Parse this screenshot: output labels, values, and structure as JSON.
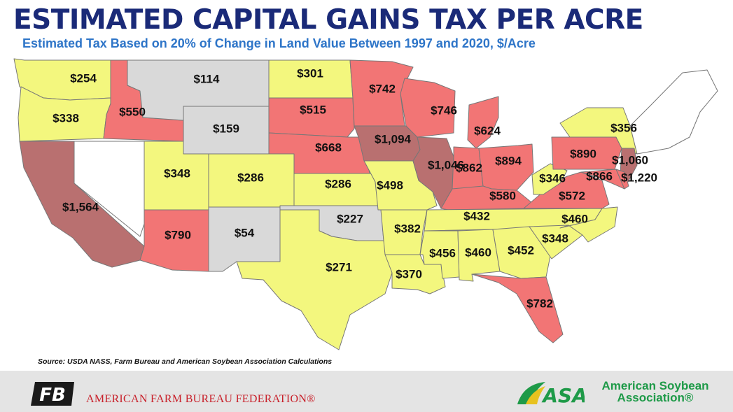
{
  "title": "ESTIMATED CAPITAL GAINS TAX PER ACRE",
  "subtitle": "Estimated Tax Based on 20% of Change in Land Value Between 1997 and 2020, $/Acre",
  "source": "Source: USDA NASS, Farm Bureau and American Soybean Association Calculations",
  "colors": {
    "title": "#1a2a78",
    "subtitle": "#2e75c8",
    "low": "#f3f77e",
    "medium": "#f27575",
    "high": "#b97070",
    "no_data": "#d9d9d9",
    "none": "#ffffff",
    "afbf_red": "#c8202a",
    "asa_green": "#1e9a48"
  },
  "states": [
    {
      "state": "WA",
      "value": "$254",
      "level": "low"
    },
    {
      "state": "OR",
      "value": "$338",
      "level": "low"
    },
    {
      "state": "CA",
      "value": "$1,564",
      "level": "high"
    },
    {
      "state": "ID",
      "value": "$550",
      "level": "medium"
    },
    {
      "state": "MT",
      "value": "$114",
      "level": "no_data"
    },
    {
      "state": "WY",
      "value": "$159",
      "level": "no_data"
    },
    {
      "state": "UT",
      "value": "$348",
      "level": "low"
    },
    {
      "state": "AZ",
      "value": "$790",
      "level": "medium"
    },
    {
      "state": "CO",
      "value": "$286",
      "level": "low"
    },
    {
      "state": "NM",
      "value": "$54",
      "level": "no_data"
    },
    {
      "state": "ND",
      "value": "$301",
      "level": "low"
    },
    {
      "state": "SD",
      "value": "$515",
      "level": "medium"
    },
    {
      "state": "NE",
      "value": "$668",
      "level": "medium"
    },
    {
      "state": "KS",
      "value": "$286",
      "level": "low"
    },
    {
      "state": "OK",
      "value": "$227",
      "level": "no_data"
    },
    {
      "state": "TX",
      "value": "$271",
      "level": "low"
    },
    {
      "state": "MN",
      "value": "$742",
      "level": "medium"
    },
    {
      "state": "IA",
      "value": "$1,094",
      "level": "high"
    },
    {
      "state": "MO",
      "value": "$498",
      "level": "low"
    },
    {
      "state": "AR",
      "value": "$382",
      "level": "low"
    },
    {
      "state": "LA",
      "value": "$370",
      "level": "low"
    },
    {
      "state": "WI",
      "value": "$746",
      "level": "medium"
    },
    {
      "state": "IL",
      "value": "$1,046",
      "level": "high"
    },
    {
      "state": "MI",
      "value": "$624",
      "level": "medium"
    },
    {
      "state": "IN",
      "value": "$862",
      "level": "medium"
    },
    {
      "state": "OH",
      "value": "$894",
      "level": "medium"
    },
    {
      "state": "KY",
      "value": "$580",
      "level": "medium"
    },
    {
      "state": "TN",
      "value": "$432",
      "level": "low"
    },
    {
      "state": "MS",
      "value": "$456",
      "level": "low"
    },
    {
      "state": "AL",
      "value": "$460",
      "level": "low"
    },
    {
      "state": "GA",
      "value": "$452",
      "level": "low"
    },
    {
      "state": "FL",
      "value": "$782",
      "level": "medium"
    },
    {
      "state": "SC",
      "value": "$348",
      "level": "low"
    },
    {
      "state": "NC",
      "value": "$460",
      "level": "low"
    },
    {
      "state": "VA",
      "value": "$572",
      "level": "medium"
    },
    {
      "state": "WV",
      "value": "$346",
      "level": "low"
    },
    {
      "state": "PA",
      "value": "$890",
      "level": "medium"
    },
    {
      "state": "NY",
      "value": "$356",
      "level": "low"
    },
    {
      "state": "NJ",
      "value": "$1,060",
      "level": "high"
    },
    {
      "state": "MD",
      "value": "$866",
      "level": "medium"
    },
    {
      "state": "DE",
      "value": "$1,220",
      "level": "medium"
    },
    {
      "state": "NV",
      "value": "",
      "level": "none"
    },
    {
      "state": "NE_STATES",
      "value": "",
      "level": "none"
    }
  ],
  "footer": {
    "afbf_name": "AMERICAN FARM BUREAU FEDERATION®",
    "afbf_logo_text": "FB",
    "asa_logo_text": "ASA",
    "asa_name_line1": "American Soybean",
    "asa_name_line2": "Association®"
  }
}
